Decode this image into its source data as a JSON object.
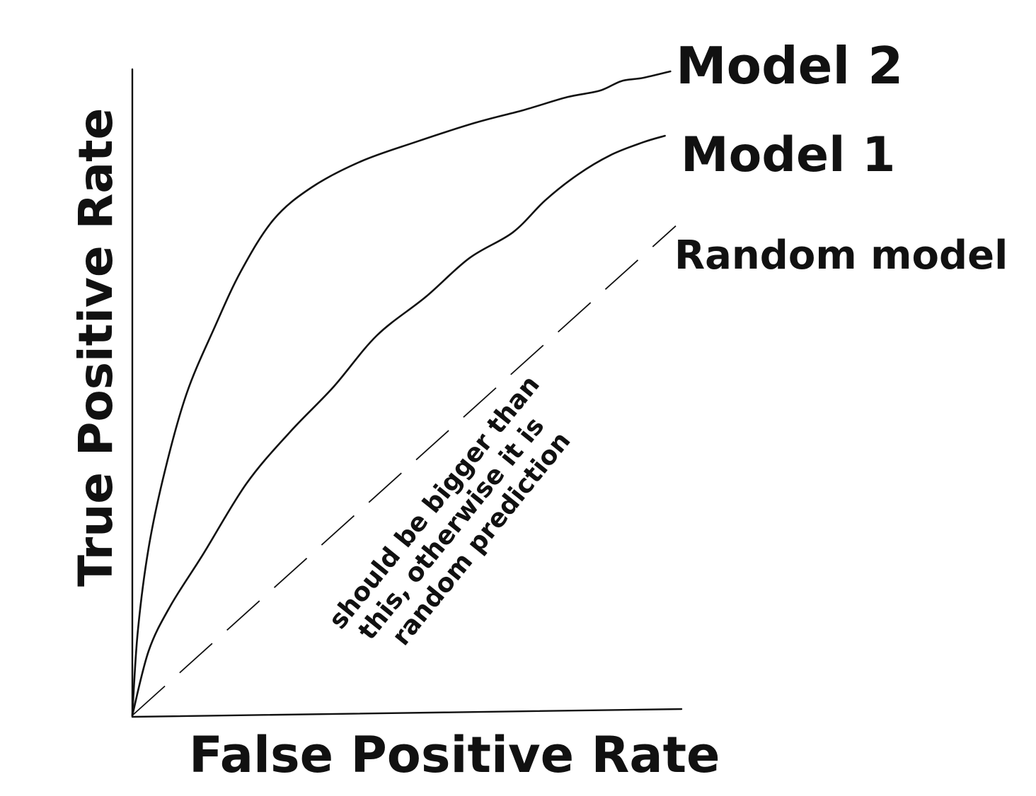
{
  "chart_data": {
    "type": "line",
    "xlabel": "False Positive Rate",
    "ylabel": "True Positive Rate",
    "xlim": [
      0,
      1
    ],
    "ylim": [
      0,
      1
    ],
    "grid": false,
    "series": [
      {
        "name": "Model 2",
        "style": "solid",
        "color": "#111111",
        "x": [
          0.0,
          0.01,
          0.03,
          0.06,
          0.1,
          0.15,
          0.2,
          0.26,
          0.33,
          0.42,
          0.52,
          0.63,
          0.72,
          0.8,
          0.86,
          0.9,
          0.94,
          0.99
        ],
        "y": [
          0.0,
          0.13,
          0.26,
          0.38,
          0.5,
          0.6,
          0.69,
          0.77,
          0.82,
          0.86,
          0.89,
          0.92,
          0.94,
          0.96,
          0.97,
          0.985,
          0.99,
          1.0
        ]
      },
      {
        "name": "Model 1",
        "style": "solid",
        "color": "#111111",
        "x": [
          0.0,
          0.03,
          0.07,
          0.13,
          0.21,
          0.29,
          0.37,
          0.45,
          0.54,
          0.62,
          0.7,
          0.76,
          0.82,
          0.88,
          0.94,
          0.98
        ],
        "y": [
          0.0,
          0.1,
          0.17,
          0.25,
          0.36,
          0.44,
          0.51,
          0.59,
          0.65,
          0.71,
          0.75,
          0.8,
          0.84,
          0.87,
          0.89,
          0.9
        ]
      },
      {
        "name": "Random model",
        "style": "dashed",
        "color": "#111111",
        "x": [
          0.0,
          1.0
        ],
        "y": [
          0.0,
          0.76
        ]
      }
    ],
    "annotations": [
      {
        "lines": [
          "should be bigger than",
          "this, otherwise it is",
          "random prediction"
        ]
      }
    ]
  }
}
